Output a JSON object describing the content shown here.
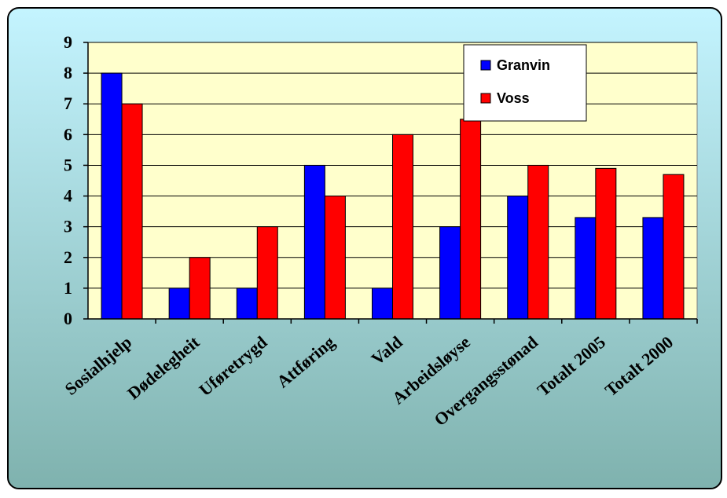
{
  "chart_data": {
    "type": "bar",
    "categories": [
      "Sosialhjelp",
      "Dødelegheit",
      "Uføretrygd",
      "Attføring",
      "Vald",
      "Arbeidsløyse",
      "Overgangsstønad",
      "Totalt 2005",
      "Totalt 2000"
    ],
    "series": [
      {
        "name": "Granvin",
        "color": "#0000ff",
        "values": [
          8,
          1,
          1,
          5,
          1,
          3,
          4,
          3.3,
          3.3
        ]
      },
      {
        "name": "Voss",
        "color": "#ff0000",
        "values": [
          7,
          2,
          3,
          4,
          6,
          6.5,
          5,
          4.9,
          4.7
        ]
      }
    ],
    "title": "",
    "xlabel": "",
    "ylabel": "",
    "ylim": [
      0,
      9
    ],
    "yticks": [
      "0",
      "1",
      "2",
      "3",
      "4",
      "5",
      "6",
      "7",
      "8",
      "9"
    ],
    "grid": true,
    "legend_position": "top-right",
    "colors": {
      "plot_area": "#ffffcc",
      "background_top": "#c4f4ff",
      "background_bottom": "#7fb2ae",
      "gridline": "#000000"
    }
  }
}
